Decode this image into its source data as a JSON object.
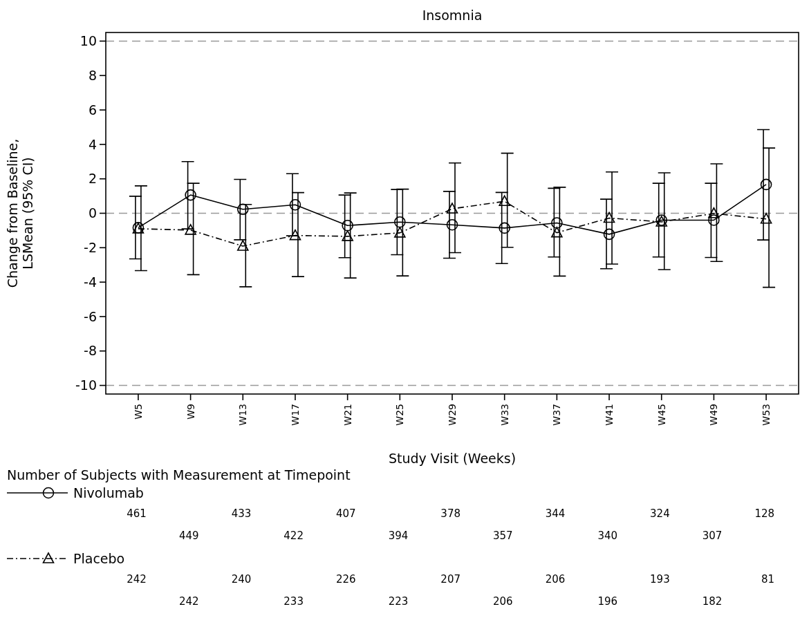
{
  "chart_data": {
    "type": "line",
    "title": "Insomnia",
    "xlabel": "Study Visit (Weeks)",
    "ylabel": "Change from Baseline,\nLSMean (95% CI)",
    "categories": [
      "W5",
      "W9",
      "W13",
      "W17",
      "W21",
      "W25",
      "W29",
      "W33",
      "W37",
      "W41",
      "W45",
      "W49",
      "W53"
    ],
    "ylim": [
      -10.5,
      10.5
    ],
    "yticks": [
      -10,
      -8,
      -6,
      -4,
      -2,
      0,
      2,
      4,
      6,
      8,
      10
    ],
    "grid": false,
    "legend": "bottom",
    "ref_lines": [
      {
        "axis": "y",
        "value": 10,
        "color": "#999999",
        "line_style": "dashed"
      },
      {
        "axis": "y",
        "value": 0,
        "color": "#999999",
        "line_style": "dashed"
      },
      {
        "axis": "y",
        "value": -10,
        "color": "#999999",
        "line_style": "dashed"
      }
    ],
    "series": [
      {
        "name": "Nivolumab",
        "color": "#000000",
        "marker": "circle",
        "line_style": "solid",
        "values": [
          -0.84,
          1.06,
          0.23,
          0.49,
          -0.71,
          -0.51,
          -0.67,
          -0.86,
          -0.56,
          -1.22,
          -0.4,
          -0.4,
          1.67
        ],
        "errors": [
          [
            -2.65,
            0.99
          ],
          [
            -0.91,
            3.0
          ],
          [
            -1.54,
            1.97
          ],
          [
            -1.31,
            2.3
          ],
          [
            -2.58,
            1.06
          ],
          [
            -2.41,
            1.38
          ],
          [
            -2.61,
            1.27
          ],
          [
            -2.92,
            1.21
          ],
          [
            -2.54,
            1.45
          ],
          [
            -3.22,
            0.82
          ],
          [
            -2.54,
            1.74
          ],
          [
            -2.57,
            1.74
          ],
          [
            -1.55,
            4.86
          ]
        ]
      },
      {
        "name": "Placebo",
        "color": "#000000",
        "marker": "triangle",
        "line_style": "dashed",
        "values": [
          -0.9,
          -0.98,
          -1.91,
          -1.29,
          -1.34,
          -1.14,
          0.26,
          0.69,
          -1.13,
          -0.28,
          -0.5,
          -0.01,
          -0.33
        ],
        "errors": [
          [
            -3.33,
            1.59
          ],
          [
            -3.57,
            1.74
          ],
          [
            -4.27,
            0.51
          ],
          [
            -3.68,
            1.2
          ],
          [
            -3.76,
            1.18
          ],
          [
            -3.64,
            1.4
          ],
          [
            -2.29,
            2.92
          ],
          [
            -1.98,
            3.49
          ],
          [
            -3.65,
            1.51
          ],
          [
            -2.95,
            2.4
          ],
          [
            -3.27,
            2.35
          ],
          [
            -2.8,
            2.87
          ],
          [
            -4.3,
            3.79
          ]
        ]
      }
    ],
    "annotations": [
      "Number of Subjects with Measurement at Timepoint",
      "461",
      "449",
      "433",
      "422",
      "407",
      "394",
      "378",
      "357",
      "344",
      "340",
      "324",
      "307",
      "128",
      "242",
      "242",
      "240",
      "233",
      "226",
      "223",
      "207",
      "206",
      "206",
      "196",
      "193",
      "182",
      "81"
    ]
  }
}
